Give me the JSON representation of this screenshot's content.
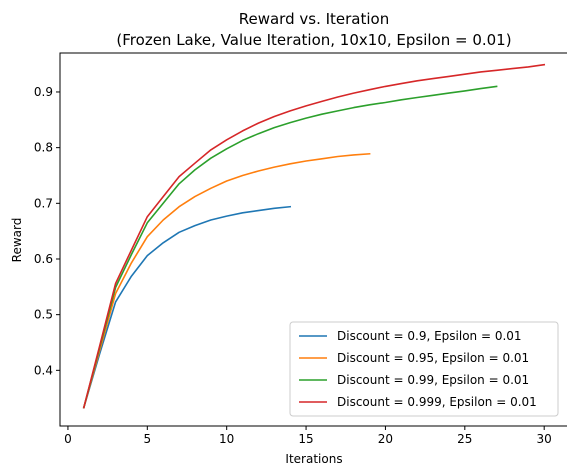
{
  "chart_data": {
    "type": "line",
    "title_line1": "Reward vs. Iteration",
    "title_line2": "(Frozen Lake, Value Iteration, 10x10, Epsilon = 0.01)",
    "xlabel": "Iterations",
    "ylabel": "Reward",
    "xlim": [
      -0.5,
      31.5
    ],
    "ylim": [
      0.3,
      0.97
    ],
    "xticks": [
      0,
      5,
      10,
      15,
      20,
      25,
      30
    ],
    "xtick_labels": [
      "0",
      "5",
      "10",
      "15",
      "20",
      "25",
      "30"
    ],
    "yticks": [
      0.4,
      0.5,
      0.6,
      0.7,
      0.8,
      0.9
    ],
    "ytick_labels": [
      "0.4",
      "0.5",
      "0.6",
      "0.7",
      "0.8",
      "0.9"
    ],
    "grid": false,
    "legend_position": "lower-right",
    "series": [
      {
        "name": "Discount = 0.9, Epsilon = 0.01",
        "color": "#1f77b4",
        "x": [
          1,
          2,
          3,
          4,
          5,
          6,
          7,
          8,
          9,
          10,
          11,
          12,
          13,
          14
        ],
        "y": [
          0.333,
          0.43,
          0.523,
          0.569,
          0.606,
          0.629,
          0.648,
          0.66,
          0.67,
          0.677,
          0.683,
          0.687,
          0.691,
          0.694
        ]
      },
      {
        "name": "Discount = 0.95, Epsilon = 0.01",
        "color": "#ff7f0e",
        "x": [
          1,
          2,
          3,
          4,
          5,
          6,
          7,
          8,
          9,
          10,
          11,
          12,
          13,
          14,
          15,
          16,
          17,
          18,
          19
        ],
        "y": [
          0.333,
          0.436,
          0.538,
          0.593,
          0.64,
          0.67,
          0.694,
          0.712,
          0.727,
          0.74,
          0.75,
          0.758,
          0.765,
          0.771,
          0.776,
          0.78,
          0.784,
          0.787,
          0.789
        ]
      },
      {
        "name": "Discount = 0.99, Epsilon = 0.01",
        "color": "#2ca02c",
        "x": [
          1,
          2,
          3,
          4,
          5,
          6,
          7,
          8,
          9,
          10,
          11,
          12,
          13,
          14,
          15,
          16,
          17,
          18,
          19,
          20,
          21,
          22,
          23,
          24,
          25,
          26,
          27
        ],
        "y": [
          0.333,
          0.441,
          0.549,
          0.608,
          0.665,
          0.7,
          0.735,
          0.76,
          0.781,
          0.798,
          0.813,
          0.825,
          0.836,
          0.845,
          0.853,
          0.86,
          0.866,
          0.872,
          0.877,
          0.881,
          0.886,
          0.89,
          0.894,
          0.898,
          0.902,
          0.906,
          0.91
        ]
      },
      {
        "name": "Discount = 0.999, Epsilon = 0.01",
        "color": "#d62728",
        "x": [
          1,
          2,
          3,
          4,
          5,
          6,
          7,
          8,
          9,
          10,
          11,
          12,
          13,
          14,
          15,
          16,
          17,
          18,
          19,
          20,
          21,
          22,
          23,
          24,
          25,
          26,
          27,
          28,
          29,
          30
        ],
        "y": [
          0.333,
          0.444,
          0.556,
          0.616,
          0.676,
          0.712,
          0.748,
          0.772,
          0.796,
          0.814,
          0.83,
          0.844,
          0.856,
          0.866,
          0.875,
          0.883,
          0.891,
          0.898,
          0.904,
          0.91,
          0.915,
          0.92,
          0.924,
          0.928,
          0.932,
          0.936,
          0.939,
          0.942,
          0.945,
          0.949
        ]
      }
    ]
  }
}
